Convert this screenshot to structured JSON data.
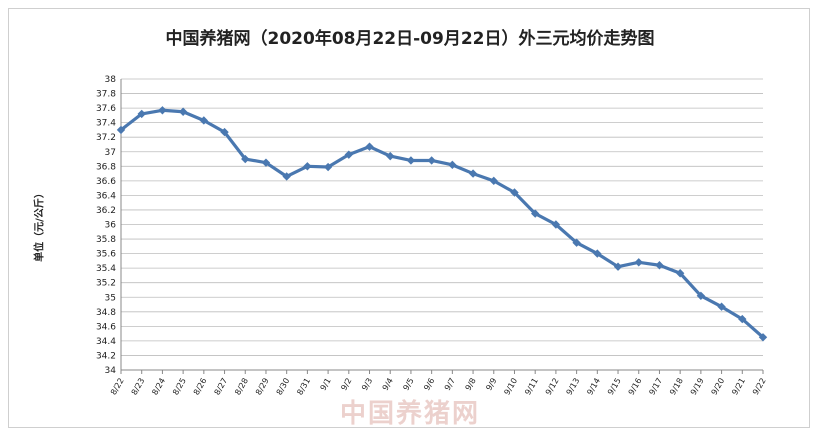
{
  "chart_data": {
    "type": "line",
    "title": "中国养猪网（2020年08月22日-09月22日）外三元均价走势图",
    "ylabel": "单位（元/公斤）",
    "xlabel": "",
    "ylim": [
      34,
      38
    ],
    "ytick_step": 0.2,
    "grid": true,
    "legend": "none",
    "line_color": "#4a78b0",
    "categories": [
      "8/22",
      "8/23",
      "8/24",
      "8/25",
      "8/26",
      "8/27",
      "8/28",
      "8/29",
      "8/30",
      "8/31",
      "9/1",
      "9/2",
      "9/3",
      "9/4",
      "9/5",
      "9/6",
      "9/7",
      "9/8",
      "9/9",
      "9/10",
      "9/11",
      "9/12",
      "9/13",
      "9/14",
      "9/15",
      "9/16",
      "9/17",
      "9/18",
      "9/19",
      "9/20",
      "9/21",
      "9/22"
    ],
    "values": [
      37.3,
      37.52,
      37.57,
      37.55,
      37.43,
      37.27,
      36.9,
      36.85,
      36.66,
      36.8,
      36.79,
      36.96,
      37.07,
      36.94,
      36.88,
      36.88,
      36.82,
      36.7,
      36.6,
      36.44,
      36.15,
      36.0,
      35.75,
      35.6,
      35.42,
      35.48,
      35.44,
      35.33,
      35.02,
      34.87,
      34.7,
      34.45
    ]
  },
  "watermark": "中国养猪网"
}
